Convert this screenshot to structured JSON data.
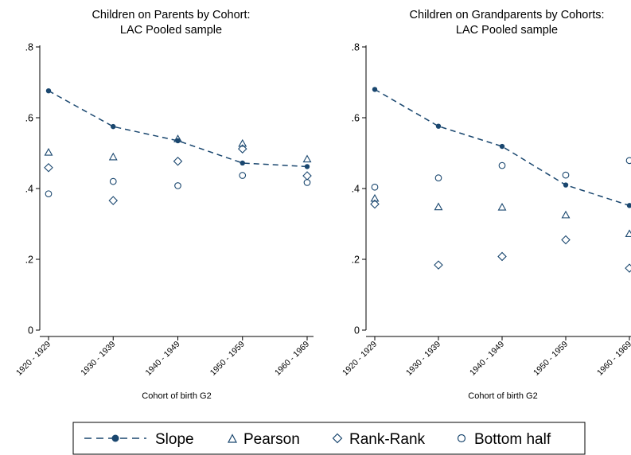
{
  "chart_data": [
    {
      "type": "scatter",
      "title": "Children on Parents by Cohort:",
      "subtitle": "LAC Pooled sample",
      "xlabel": "Cohort of birth G2",
      "ylabel": "",
      "categories": [
        "1920 - 1929",
        "1930 - 1939",
        "1940 - 1949",
        "1950 - 1959",
        "1960 - 1969"
      ],
      "yticks": [
        "0",
        ".2",
        ".4",
        ".6",
        ".8"
      ],
      "ylim": [
        0,
        0.8
      ],
      "grid": false,
      "series": [
        {
          "name": "Slope",
          "style": "line-dot",
          "values": [
            0.676,
            0.575,
            0.535,
            0.472,
            0.462
          ]
        },
        {
          "name": "Pearson",
          "style": "triangle",
          "values": [
            0.502,
            0.489,
            0.54,
            0.527,
            0.483
          ]
        },
        {
          "name": "Rank-Rank",
          "style": "diamond",
          "values": [
            0.459,
            0.366,
            0.477,
            0.512,
            0.436
          ]
        },
        {
          "name": "Bottom half",
          "style": "circle",
          "values": [
            0.385,
            0.42,
            0.408,
            0.437,
            0.417
          ]
        }
      ]
    },
    {
      "type": "scatter",
      "title": "Children on Grandparents by Cohorts:",
      "subtitle": "LAC Pooled sample",
      "xlabel": "Cohort of birth G2",
      "ylabel": "",
      "categories": [
        "1920 - 1929",
        "1930 - 1939",
        "1940 - 1949",
        "1950 - 1959",
        "1960 - 1969"
      ],
      "yticks": [
        "0",
        ".2",
        ".4",
        ".6",
        ".8"
      ],
      "ylim": [
        0,
        0.8
      ],
      "grid": false,
      "series": [
        {
          "name": "Slope",
          "style": "line-dot",
          "values": [
            0.68,
            0.576,
            0.519,
            0.41,
            0.352
          ]
        },
        {
          "name": "Pearson",
          "style": "triangle",
          "values": [
            0.372,
            0.348,
            0.347,
            0.325,
            0.272
          ]
        },
        {
          "name": "Rank-Rank",
          "style": "diamond",
          "values": [
            0.356,
            0.184,
            0.208,
            0.255,
            0.175
          ]
        },
        {
          "name": "Bottom half",
          "style": "circle",
          "values": [
            0.404,
            0.43,
            0.465,
            0.438,
            0.479
          ]
        }
      ]
    }
  ],
  "legend": {
    "placement": "bottom",
    "items": [
      {
        "label": "Slope",
        "marker": "line-dot"
      },
      {
        "label": "Pearson",
        "marker": "triangle"
      },
      {
        "label": "Rank-Rank",
        "marker": "diamond"
      },
      {
        "label": "Bottom half",
        "marker": "circle"
      }
    ]
  },
  "colors": {
    "series": "#1a476f",
    "axis": "#000000",
    "background": "#ffffff"
  }
}
